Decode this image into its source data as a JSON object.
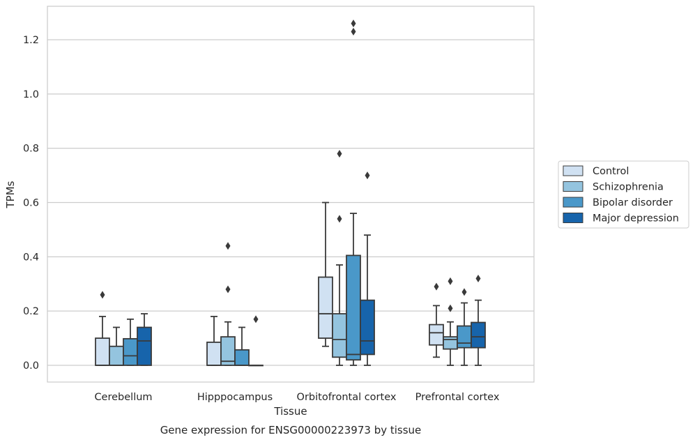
{
  "chart_data": {
    "type": "box",
    "categories": [
      "Cerebellum",
      "Hipppocampus",
      "Orbitofrontal cortex",
      "Prefrontal cortex"
    ],
    "xlabel": "Tissue",
    "ylabel": "TPMs",
    "caption": "Gene expression for ENSG00000223973 by tissue",
    "ylim": [
      -0.06,
      1.32
    ],
    "yticks": [
      "0.0",
      "0.2",
      "0.4",
      "0.6",
      "0.8",
      "1.0",
      "1.2"
    ],
    "grid": true,
    "legend_position": "right",
    "series": [
      {
        "name": "Control",
        "color": "#d0e1f2",
        "boxes": [
          {
            "whislo": 0.0,
            "q1": 0.0,
            "med": 0.0,
            "q3": 0.1,
            "whishi": 0.18,
            "fliers": [
              0.26
            ]
          },
          {
            "whislo": 0.0,
            "q1": 0.0,
            "med": 0.0,
            "q3": 0.085,
            "whishi": 0.18,
            "fliers": []
          },
          {
            "whislo": 0.07,
            "q1": 0.1,
            "med": 0.19,
            "q3": 0.325,
            "whishi": 0.6,
            "fliers": []
          },
          {
            "whislo": 0.03,
            "q1": 0.075,
            "med": 0.12,
            "q3": 0.15,
            "whishi": 0.22,
            "fliers": [
              0.29
            ]
          }
        ]
      },
      {
        "name": "Schizophrenia",
        "color": "#94c4df",
        "boxes": [
          {
            "whislo": 0.0,
            "q1": 0.0,
            "med": 0.0,
            "q3": 0.07,
            "whishi": 0.14,
            "fliers": []
          },
          {
            "whislo": 0.0,
            "q1": 0.0,
            "med": 0.015,
            "q3": 0.105,
            "whishi": 0.16,
            "fliers": [
              0.28,
              0.44
            ]
          },
          {
            "whislo": 0.0,
            "q1": 0.03,
            "med": 0.095,
            "q3": 0.19,
            "whishi": 0.37,
            "fliers": [
              0.54,
              0.78
            ]
          },
          {
            "whislo": 0.0,
            "q1": 0.06,
            "med": 0.095,
            "q3": 0.105,
            "whishi": 0.16,
            "fliers": [
              0.21,
              0.31
            ]
          }
        ]
      },
      {
        "name": "Bipolar disorder",
        "color": "#4a98c9",
        "boxes": [
          {
            "whislo": 0.0,
            "q1": 0.0,
            "med": 0.035,
            "q3": 0.098,
            "whishi": 0.17,
            "fliers": []
          },
          {
            "whislo": 0.0,
            "q1": 0.0,
            "med": 0.0,
            "q3": 0.057,
            "whishi": 0.14,
            "fliers": []
          },
          {
            "whislo": 0.0,
            "q1": 0.02,
            "med": 0.04,
            "q3": 0.405,
            "whishi": 0.56,
            "fliers": [
              1.23,
              1.26
            ]
          },
          {
            "whislo": 0.0,
            "q1": 0.065,
            "med": 0.082,
            "q3": 0.145,
            "whishi": 0.23,
            "fliers": [
              0.27
            ]
          }
        ]
      },
      {
        "name": "Major depression",
        "color": "#1764ab",
        "boxes": [
          {
            "whislo": 0.0,
            "q1": 0.0,
            "med": 0.09,
            "q3": 0.14,
            "whishi": 0.19,
            "fliers": []
          },
          {
            "whislo": 0.0,
            "q1": 0.0,
            "med": 0.0,
            "q3": 0.0,
            "whishi": 0.0,
            "fliers": [
              0.17
            ]
          },
          {
            "whislo": 0.0,
            "q1": 0.04,
            "med": 0.09,
            "q3": 0.24,
            "whishi": 0.48,
            "fliers": [
              0.7
            ]
          },
          {
            "whislo": 0.0,
            "q1": 0.065,
            "med": 0.105,
            "q3": 0.158,
            "whishi": 0.24,
            "fliers": [
              0.32
            ]
          }
        ]
      }
    ]
  }
}
